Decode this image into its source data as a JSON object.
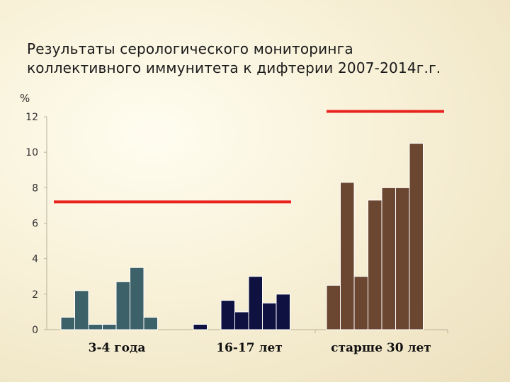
{
  "chart_data": {
    "type": "bar",
    "title_lines": [
      "Результаты серологического мониторинга",
      "коллективного иммунитета к дифтерии 2007-2014г.г."
    ],
    "ylabel": "%",
    "ylim": [
      0,
      12
    ],
    "yticks": [
      "0",
      "2",
      "4",
      "6",
      "8",
      "10",
      "12"
    ],
    "grid": false,
    "groups": [
      {
        "label": "3-4 года",
        "color": "#3d6168",
        "values": [
          0.7,
          2.2,
          0.3,
          0.3,
          2.7,
          3.5,
          0.7
        ],
        "threshold": 7.2
      },
      {
        "label": "16-17 лет",
        "color": "#0f1240",
        "values": [
          0.3,
          0,
          1.65,
          1.0,
          3.0,
          1.5,
          2.0
        ],
        "threshold": 7.2
      },
      {
        "label": "старше 30 лет",
        "color": "#6b4630",
        "values": [
          2.5,
          8.3,
          3.0,
          7.3,
          8.0,
          8.0,
          10.5
        ],
        "threshold": 12.3
      }
    ],
    "threshold_color": "#e8221c"
  }
}
